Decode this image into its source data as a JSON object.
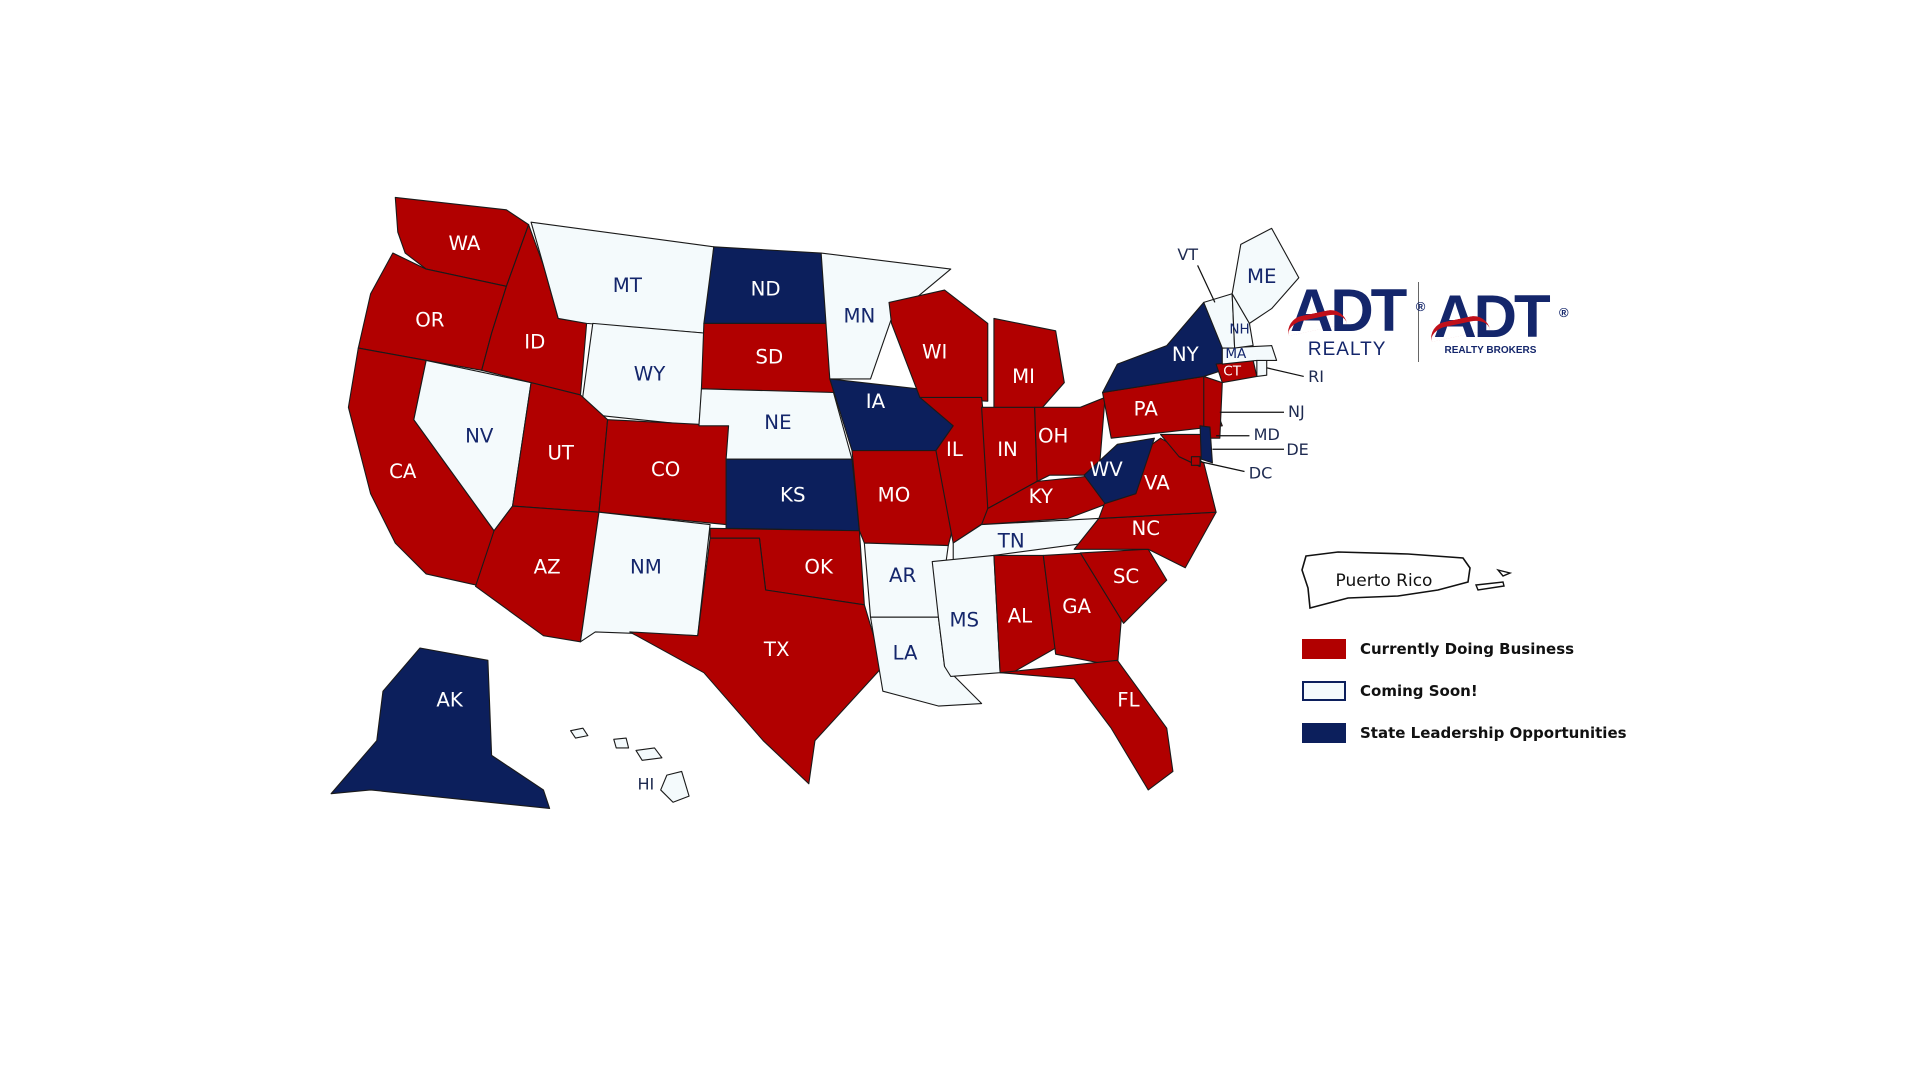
{
  "colors": {
    "business": "#b10000",
    "coming_soon": "#f4fafc",
    "leadership": "#0c1f5c"
  },
  "logo": {
    "left": {
      "mark": "ADT",
      "sub": "REALTY",
      "reg": "®"
    },
    "right": {
      "mark": "ADT",
      "sub": "REALTY BROKERS",
      "reg": "®"
    }
  },
  "legend": [
    {
      "status": "business",
      "label": "Currently Doing Business"
    },
    {
      "status": "coming_soon",
      "label": "Coming Soon!"
    },
    {
      "status": "leadership",
      "label": "State Leadership Opportunities"
    }
  ],
  "territory": {
    "label": "Puerto Rico",
    "status": "coming_soon"
  },
  "states": [
    {
      "abbr": "WA",
      "status": "business"
    },
    {
      "abbr": "OR",
      "status": "business"
    },
    {
      "abbr": "CA",
      "status": "business"
    },
    {
      "abbr": "NV",
      "status": "coming_soon"
    },
    {
      "abbr": "ID",
      "status": "business"
    },
    {
      "abbr": "MT",
      "status": "coming_soon"
    },
    {
      "abbr": "WY",
      "status": "coming_soon"
    },
    {
      "abbr": "UT",
      "status": "business"
    },
    {
      "abbr": "CO",
      "status": "business"
    },
    {
      "abbr": "AZ",
      "status": "business"
    },
    {
      "abbr": "NM",
      "status": "coming_soon"
    },
    {
      "abbr": "ND",
      "status": "leadership"
    },
    {
      "abbr": "SD",
      "status": "business"
    },
    {
      "abbr": "NE",
      "status": "coming_soon"
    },
    {
      "abbr": "KS",
      "status": "leadership"
    },
    {
      "abbr": "OK",
      "status": "business"
    },
    {
      "abbr": "TX",
      "status": "business"
    },
    {
      "abbr": "MN",
      "status": "coming_soon"
    },
    {
      "abbr": "IA",
      "status": "leadership"
    },
    {
      "abbr": "MO",
      "status": "business"
    },
    {
      "abbr": "AR",
      "status": "coming_soon"
    },
    {
      "abbr": "LA",
      "status": "coming_soon"
    },
    {
      "abbr": "WI",
      "status": "business"
    },
    {
      "abbr": "IL",
      "status": "business"
    },
    {
      "abbr": "MI",
      "status": "business"
    },
    {
      "abbr": "IN",
      "status": "business"
    },
    {
      "abbr": "OH",
      "status": "business"
    },
    {
      "abbr": "KY",
      "status": "business"
    },
    {
      "abbr": "TN",
      "status": "coming_soon"
    },
    {
      "abbr": "MS",
      "status": "coming_soon"
    },
    {
      "abbr": "AL",
      "status": "business"
    },
    {
      "abbr": "GA",
      "status": "business"
    },
    {
      "abbr": "FL",
      "status": "business"
    },
    {
      "abbr": "SC",
      "status": "business"
    },
    {
      "abbr": "NC",
      "status": "business"
    },
    {
      "abbr": "VA",
      "status": "business"
    },
    {
      "abbr": "WV",
      "status": "leadership"
    },
    {
      "abbr": "PA",
      "status": "business"
    },
    {
      "abbr": "NY",
      "status": "leadership"
    },
    {
      "abbr": "NJ",
      "status": "business"
    },
    {
      "abbr": "MD",
      "status": "business"
    },
    {
      "abbr": "DE",
      "status": "leadership"
    },
    {
      "abbr": "DC",
      "status": "business"
    },
    {
      "abbr": "CT",
      "status": "business"
    },
    {
      "abbr": "RI",
      "status": "coming_soon"
    },
    {
      "abbr": "MA",
      "status": "coming_soon"
    },
    {
      "abbr": "VT",
      "status": "coming_soon"
    },
    {
      "abbr": "NH",
      "status": "coming_soon"
    },
    {
      "abbr": "ME",
      "status": "coming_soon"
    },
    {
      "abbr": "AK",
      "status": "leadership"
    },
    {
      "abbr": "HI",
      "status": "coming_soon"
    }
  ]
}
